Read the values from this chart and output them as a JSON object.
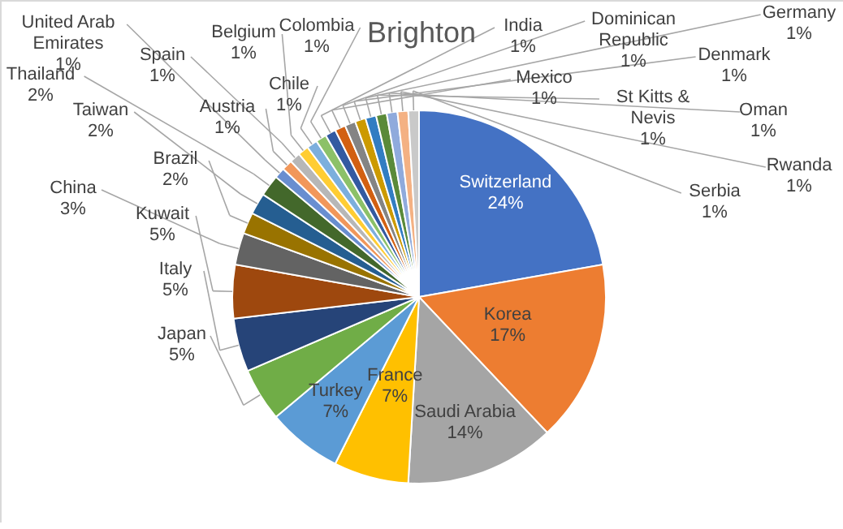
{
  "chart_data": {
    "type": "pie",
    "title": "Brighton",
    "categories": [
      "Switzerland",
      "Korea",
      "Saudi Arabia",
      "France",
      "Turkey",
      "Japan",
      "Italy",
      "Kuwait",
      "China",
      "Brazil",
      "Taiwan",
      "Thailand",
      "United Arab Emirates",
      "Austria",
      "Spain",
      "Belgium",
      "Chile",
      "Colombia",
      "India",
      "Mexico",
      "Dominican Republic",
      "Denmark",
      "Germany",
      "St Kitts & Nevis",
      "Oman",
      "Rwanda",
      "Serbia"
    ],
    "values": [
      24,
      17,
      14,
      7,
      7,
      5,
      5,
      5,
      3,
      2,
      2,
      2,
      1,
      1,
      1,
      1,
      1,
      1,
      1,
      1,
      1,
      1,
      1,
      1,
      1,
      1,
      1
    ],
    "value_labels": [
      "24%",
      "17%",
      "14%",
      "7%",
      "7%",
      "5%",
      "5%",
      "5%",
      "3%",
      "2%",
      "2%",
      "2%",
      "1%",
      "1%",
      "1%",
      "1%",
      "1%",
      "1%",
      "1%",
      "1%",
      "1%",
      "1%",
      "1%",
      "1%",
      "1%",
      "1%",
      "1%"
    ],
    "colors": [
      "#4472c4",
      "#ed7d31",
      "#a5a5a5",
      "#ffc000",
      "#5b9bd5",
      "#70ad47",
      "#264478",
      "#9e480e",
      "#636363",
      "#997300",
      "#255e91",
      "#43682b",
      "#698ed0",
      "#f1975a",
      "#b7b7b7",
      "#ffcd33",
      "#7cafdd",
      "#8cc168",
      "#335aa1",
      "#d26012",
      "#848484",
      "#cc9a00",
      "#327dc2",
      "#5a8a39",
      "#8faadc",
      "#f4b183",
      "#c9c9c9"
    ],
    "legend": false
  }
}
